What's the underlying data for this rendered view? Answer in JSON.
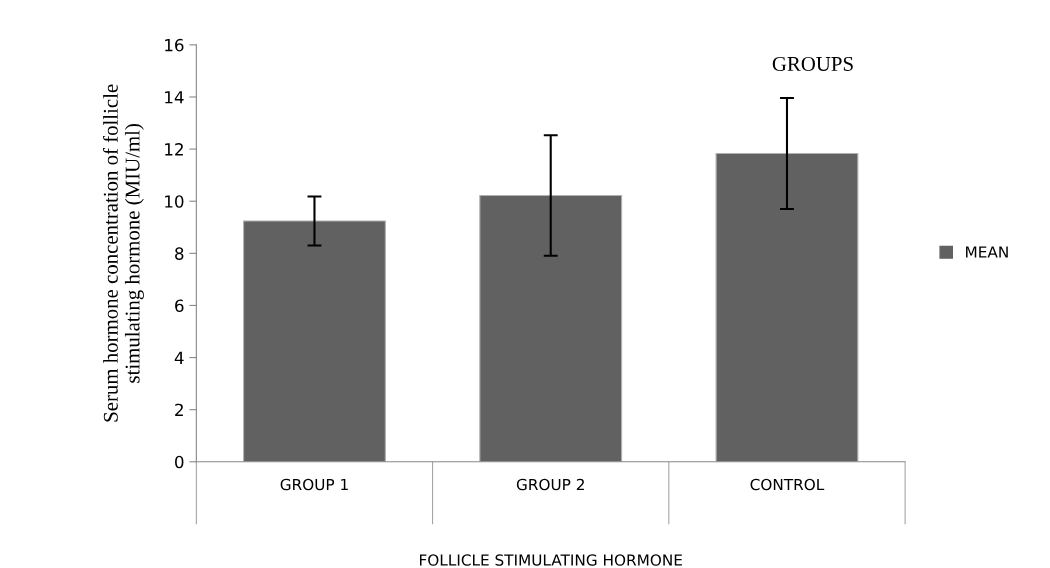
{
  "chart_data": {
    "type": "bar",
    "title": "GROUPS",
    "ylabel": "Serum hormone concentration of follicle\nstimulating hormone (MIU/ml)",
    "xlabel": "FOLLICLE STIMULATING HORMONE",
    "categories": [
      "GROUP 1",
      "GROUP 2",
      "CONTROL"
    ],
    "series": [
      {
        "name": "MEAN",
        "color": "#616161",
        "values": [
          9.24,
          10.22,
          11.83
        ],
        "errors": [
          0.94,
          2.31,
          2.13
        ]
      }
    ],
    "ylim": [
      0,
      16
    ],
    "yticks": [
      0,
      2,
      4,
      6,
      8,
      10,
      12,
      14,
      16
    ],
    "grid": false,
    "legend": "right"
  }
}
